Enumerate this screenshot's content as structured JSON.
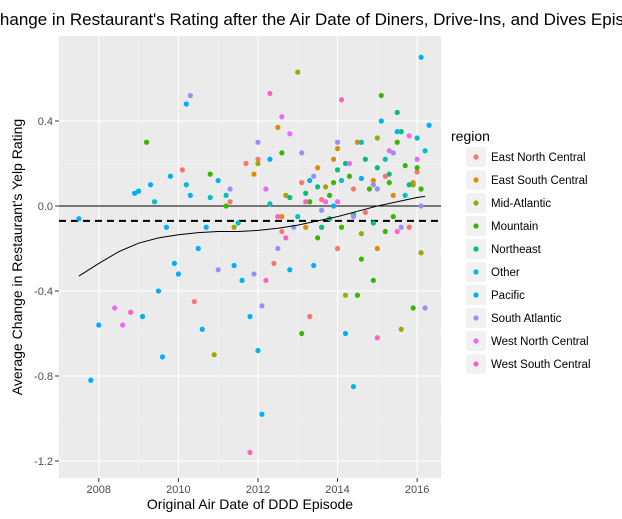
{
  "chart_data": {
    "type": "scatter",
    "title": "Change in Restaurant's Rating after the Air Date of Diners, Drive-Ins, and Dives Episode",
    "xlabel": "Original Air Date of DDD Episode",
    "ylabel": "Average Change in Restaurant's Yelp Rating",
    "xlim": [
      2007.0,
      2016.6
    ],
    "ylim": [
      -1.28,
      0.8
    ],
    "x_ticks": [
      2008,
      2010,
      2012,
      2014,
      2016
    ],
    "y_ticks": [
      -1.2,
      -0.8,
      -0.4,
      0.0,
      0.4
    ],
    "x_tick_labels": [
      "2008",
      "2010",
      "2012",
      "2014",
      "2016"
    ],
    "y_tick_labels": [
      "-1.2",
      "-0.8",
      "-0.4",
      "0.0",
      "0.4"
    ],
    "grid": true,
    "legend": {
      "title": "region",
      "placement": "right",
      "entries": [
        {
          "name": "East North Central",
          "color": "#F8766D"
        },
        {
          "name": "East South Central",
          "color": "#D89000"
        },
        {
          "name": "Mid-Atlantic",
          "color": "#A3A500"
        },
        {
          "name": "Mountain",
          "color": "#39B600"
        },
        {
          "name": "Northeast",
          "color": "#00BF7D"
        },
        {
          "name": "Other",
          "color": "#00BFC4"
        },
        {
          "name": "Pacific",
          "color": "#00B0F6"
        },
        {
          "name": "South Atlantic",
          "color": "#9590FF"
        },
        {
          "name": "West North Central",
          "color": "#E76BF3"
        },
        {
          "name": "West South Central",
          "color": "#FF62BC"
        }
      ]
    },
    "reference_lines": [
      {
        "type": "horizontal",
        "y": 0.0,
        "style": "solid"
      },
      {
        "type": "horizontal",
        "y": -0.07,
        "style": "dashed"
      }
    ],
    "trend_line": [
      [
        2007.5,
        -0.33
      ],
      [
        2008.0,
        -0.27
      ],
      [
        2008.5,
        -0.215
      ],
      [
        2009.0,
        -0.175
      ],
      [
        2009.5,
        -0.15
      ],
      [
        2010.0,
        -0.135
      ],
      [
        2010.5,
        -0.125
      ],
      [
        2011.0,
        -0.12
      ],
      [
        2011.5,
        -0.12
      ],
      [
        2012.0,
        -0.115
      ],
      [
        2012.5,
        -0.105
      ],
      [
        2013.0,
        -0.09
      ],
      [
        2013.5,
        -0.07
      ],
      [
        2014.0,
        -0.05
      ],
      [
        2014.5,
        -0.025
      ],
      [
        2015.0,
        0.0
      ],
      [
        2015.5,
        0.02
      ],
      [
        2016.0,
        0.04
      ],
      [
        2016.2,
        0.045
      ]
    ],
    "series": [
      {
        "name": "East North Central",
        "points": [
          [
            2010.1,
            0.17
          ],
          [
            2010.4,
            -0.45
          ],
          [
            2011.3,
            0.02
          ],
          [
            2011.7,
            0.2
          ],
          [
            2012.0,
            0.22
          ],
          [
            2012.4,
            -0.27
          ],
          [
            2012.6,
            -0.12
          ],
          [
            2013.1,
            0.11
          ],
          [
            2013.6,
            0.03
          ],
          [
            2014.0,
            -0.2
          ],
          [
            2014.7,
            -0.03
          ],
          [
            2015.2,
            0.14
          ],
          [
            2015.8,
            -0.1
          ],
          [
            2016.0,
            0.16
          ],
          [
            2013.3,
            -0.52
          ],
          [
            2014.4,
            0.08
          ]
        ]
      },
      {
        "name": "East South Central",
        "points": [
          [
            2011.9,
            0.15
          ],
          [
            2012.5,
            0.37
          ],
          [
            2012.6,
            -0.05
          ],
          [
            2013.2,
            -0.1
          ],
          [
            2013.9,
            0.22
          ],
          [
            2014.0,
            0.27
          ],
          [
            2014.5,
            0.3
          ],
          [
            2015.0,
            -0.2
          ],
          [
            2015.4,
            0.05
          ],
          [
            2015.9,
            0.11
          ],
          [
            2013.5,
            0.18
          ],
          [
            2014.9,
            0.12
          ]
        ]
      },
      {
        "name": "Mid-Atlantic",
        "points": [
          [
            2010.9,
            -0.7
          ],
          [
            2011.4,
            -0.1
          ],
          [
            2012.0,
            0.2
          ],
          [
            2012.7,
            0.05
          ],
          [
            2013.0,
            0.63
          ],
          [
            2013.7,
            0.09
          ],
          [
            2014.2,
            -0.42
          ],
          [
            2014.6,
            -0.13
          ],
          [
            2015.0,
            0.32
          ],
          [
            2015.6,
            -0.58
          ],
          [
            2015.9,
            0.1
          ],
          [
            2016.1,
            -0.22
          ]
        ]
      },
      {
        "name": "Mountain",
        "points": [
          [
            2009.2,
            0.3
          ],
          [
            2010.8,
            0.15
          ],
          [
            2011.2,
            0.0
          ],
          [
            2012.6,
            0.25
          ],
          [
            2013.3,
            0.02
          ],
          [
            2013.5,
            -0.15
          ],
          [
            2013.8,
            0.05
          ],
          [
            2014.1,
            -0.1
          ],
          [
            2014.3,
            0.14
          ],
          [
            2014.6,
            -0.25
          ],
          [
            2014.9,
            -0.35
          ],
          [
            2015.1,
            0.52
          ],
          [
            2015.4,
            -0.05
          ],
          [
            2015.5,
            0.3
          ],
          [
            2015.7,
            0.19
          ],
          [
            2015.9,
            -0.48
          ],
          [
            2016.0,
            0.18
          ],
          [
            2016.1,
            0.08
          ],
          [
            2013.1,
            -0.6
          ],
          [
            2014.8,
            0.08
          ],
          [
            2015.2,
            -0.12
          ],
          [
            2013.9,
            0.11
          ],
          [
            2014.5,
            -0.42
          ],
          [
            2015.3,
            0.11
          ]
        ]
      },
      {
        "name": "Northeast",
        "points": [
          [
            2012.8,
            0.04
          ],
          [
            2013.2,
            0.06
          ],
          [
            2013.5,
            0.09
          ],
          [
            2013.8,
            -0.06
          ],
          [
            2014.0,
            0.17
          ],
          [
            2014.2,
            0.2
          ],
          [
            2014.4,
            -0.04
          ],
          [
            2014.7,
            0.22
          ],
          [
            2015.0,
            0.18
          ],
          [
            2015.3,
            0.15
          ],
          [
            2015.6,
            0.35
          ],
          [
            2015.8,
            0.1
          ],
          [
            2013.6,
            -0.1
          ],
          [
            2014.9,
            -0.08
          ],
          [
            2015.5,
            0.44
          ]
        ]
      },
      {
        "name": "Other",
        "points": [
          [
            2009.0,
            0.07
          ],
          [
            2009.4,
            0.02
          ],
          [
            2010.2,
            0.1
          ],
          [
            2010.8,
            0.04
          ],
          [
            2011.5,
            -0.08
          ],
          [
            2012.3,
            0.01
          ],
          [
            2013.0,
            -0.05
          ],
          [
            2014.1,
            0.12
          ],
          [
            2014.6,
            0.3
          ],
          [
            2015.2,
            0.22
          ],
          [
            2015.7,
            0.05
          ],
          [
            2016.0,
            0.32
          ],
          [
            2016.2,
            0.26
          ],
          [
            2011.2,
            0.05
          ]
        ]
      },
      {
        "name": "Pacific",
        "points": [
          [
            2007.5,
            -0.06
          ],
          [
            2007.8,
            -0.82
          ],
          [
            2008.0,
            -0.56
          ],
          [
            2008.9,
            0.06
          ],
          [
            2009.0,
            0.07
          ],
          [
            2009.3,
            0.1
          ],
          [
            2009.5,
            -0.4
          ],
          [
            2009.6,
            -0.71
          ],
          [
            2009.7,
            -0.1
          ],
          [
            2009.8,
            0.14
          ],
          [
            2009.9,
            -0.27
          ],
          [
            2010.0,
            -0.32
          ],
          [
            2010.2,
            0.48
          ],
          [
            2010.3,
            0.05
          ],
          [
            2010.6,
            -0.58
          ],
          [
            2010.7,
            -0.1
          ],
          [
            2011.0,
            0.12
          ],
          [
            2011.4,
            -0.28
          ],
          [
            2011.8,
            -0.52
          ],
          [
            2012.0,
            -0.68
          ],
          [
            2012.1,
            -0.98
          ],
          [
            2012.3,
            0.22
          ],
          [
            2012.8,
            -0.3
          ],
          [
            2013.3,
            0.12
          ],
          [
            2013.4,
            -0.28
          ],
          [
            2014.2,
            -0.6
          ],
          [
            2014.4,
            -0.85
          ],
          [
            2014.6,
            0.13
          ],
          [
            2015.1,
            0.4
          ],
          [
            2015.5,
            0.35
          ],
          [
            2016.1,
            0.7
          ],
          [
            2016.3,
            0.38
          ],
          [
            2009.1,
            -0.52
          ],
          [
            2010.5,
            -0.2
          ],
          [
            2013.9,
            0.0
          ],
          [
            2011.6,
            -0.35
          ]
        ]
      },
      {
        "name": "South Atlantic",
        "points": [
          [
            2010.3,
            0.52
          ],
          [
            2011.0,
            -0.3
          ],
          [
            2011.3,
            0.08
          ],
          [
            2012.0,
            0.3
          ],
          [
            2012.1,
            -0.47
          ],
          [
            2012.5,
            -0.2
          ],
          [
            2013.1,
            0.25
          ],
          [
            2013.4,
            0.14
          ],
          [
            2013.6,
            -0.02
          ],
          [
            2014.0,
            0.3
          ],
          [
            2014.4,
            -0.05
          ],
          [
            2014.9,
            0.1
          ],
          [
            2015.4,
            0.25
          ],
          [
            2015.6,
            -0.1
          ],
          [
            2016.1,
            0.0
          ],
          [
            2016.2,
            -0.48
          ],
          [
            2011.9,
            -0.32
          ],
          [
            2012.9,
            -0.1
          ],
          [
            2015.0,
            0.08
          ]
        ]
      },
      {
        "name": "West North Central",
        "points": [
          [
            2008.4,
            -0.48
          ],
          [
            2008.6,
            -0.56
          ],
          [
            2012.2,
            0.08
          ],
          [
            2012.6,
            0.42
          ],
          [
            2013.7,
            0.02
          ],
          [
            2014.0,
            0.02
          ],
          [
            2014.3,
            0.2
          ],
          [
            2015.3,
            0.26
          ],
          [
            2015.8,
            0.33
          ],
          [
            2016.0,
            0.22
          ],
          [
            2012.8,
            0.34
          ]
        ]
      },
      {
        "name": "West South Central",
        "points": [
          [
            2008.8,
            -0.5
          ],
          [
            2011.8,
            -1.16
          ],
          [
            2012.2,
            -0.35
          ],
          [
            2012.3,
            0.53
          ],
          [
            2012.7,
            -0.15
          ],
          [
            2013.2,
            0.02
          ],
          [
            2014.1,
            0.5
          ],
          [
            2015.0,
            -0.62
          ],
          [
            2015.5,
            -0.12
          ],
          [
            2012.5,
            -0.05
          ]
        ]
      }
    ]
  }
}
